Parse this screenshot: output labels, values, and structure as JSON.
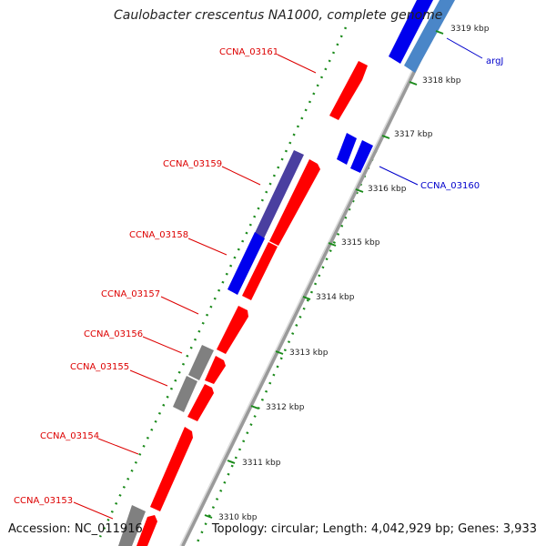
{
  "title": "Caulobacter crescentus NA1000, complete genome",
  "footer": {
    "accession": "Accession: NC_011916",
    "topology": "Topology: circular; Length: 4,042,929 bp; Genes: 3,933"
  },
  "colors": {
    "gene_label": "#dd0000",
    "blue_label": "#0000cc",
    "feature_red": "#ff0000",
    "feature_blue": "#0000ee",
    "feature_navy": "#4a3fa0",
    "feature_gray": "#808080",
    "feature_steel": "#4a86c8",
    "backbone": "#9a9a9a",
    "tick_green": "#1a8a1a"
  },
  "scale_ticks": [
    {
      "label": "3319 kbp"
    },
    {
      "label": "3318 kbp"
    },
    {
      "label": "3317 kbp"
    },
    {
      "label": "3316 kbp"
    },
    {
      "label": "3315 kbp"
    },
    {
      "label": "3314 kbp"
    },
    {
      "label": "3313 kbp"
    },
    {
      "label": "3312 kbp"
    },
    {
      "label": "3311 kbp"
    },
    {
      "label": "3310 kbp"
    }
  ],
  "gene_labels": [
    {
      "id": "CCNA_03161",
      "text": "CCNA_03161"
    },
    {
      "id": "CCNA_03159",
      "text": "CCNA_03159"
    },
    {
      "id": "CCNA_03158",
      "text": "CCNA_03158"
    },
    {
      "id": "CCNA_03157",
      "text": "CCNA_03157"
    },
    {
      "id": "CCNA_03156",
      "text": "CCNA_03156"
    },
    {
      "id": "CCNA_03155",
      "text": "CCNA_03155"
    },
    {
      "id": "CCNA_03154",
      "text": "CCNA_03154"
    },
    {
      "id": "CCNA_03153",
      "text": "CCNA_03153"
    },
    {
      "id": "CCNA_03160",
      "text": "CCNA_03160"
    },
    {
      "id": "argJ",
      "text": "argJ"
    }
  ]
}
